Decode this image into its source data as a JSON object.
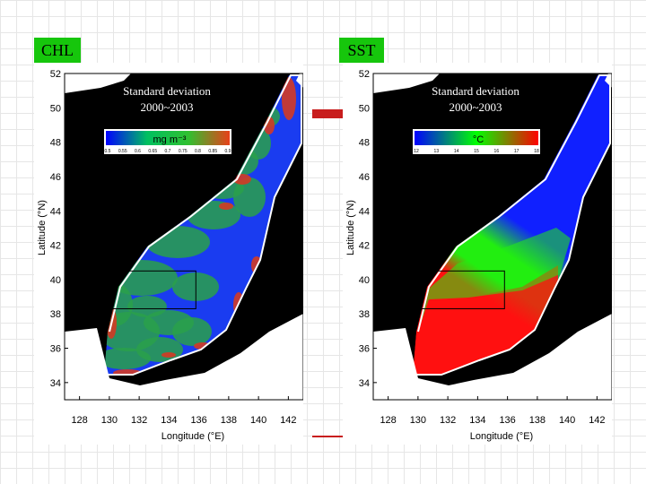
{
  "panels": [
    {
      "key": "chl",
      "tag": "CHL",
      "title_line1": "Standard deviation",
      "title_line2": "2000~2003",
      "colorbar_unit": "mg m⁻³",
      "colorbar_ticks": [
        "0.5",
        "0.55",
        "0.6",
        "0.65",
        "0.7",
        "0.75",
        "0.8",
        "0.85",
        "0.9"
      ],
      "colorbar_colors": [
        "#0000ff",
        "#00c060",
        "#30c030",
        "#e8401a"
      ],
      "sea_colors": [
        "#1a3cf0",
        "#2aa04a",
        "#d43a24"
      ],
      "land_color": "#000000"
    },
    {
      "key": "sst",
      "tag": "SST",
      "title_line1": "Standard deviation",
      "title_line2": "2000~2003",
      "colorbar_unit": "°C",
      "colorbar_ticks": [
        "12",
        "13",
        "14",
        "15",
        "16",
        "17",
        "18"
      ],
      "colorbar_colors": [
        "#0000ff",
        "#00ff00",
        "#ff0000"
      ],
      "sea_colors": [
        "#1020ff",
        "#22ee10",
        "#ff1010"
      ],
      "land_color": "#000000"
    }
  ],
  "axes": {
    "xlabel": "Longitude (°E)",
    "ylabel": "Latitude (°N)",
    "lon_ticks": [
      128,
      130,
      132,
      134,
      136,
      138,
      140,
      142
    ],
    "lat_ticks": [
      34,
      36,
      38,
      40,
      42,
      44,
      46,
      48,
      50,
      52
    ],
    "lon_range": [
      127,
      143
    ],
    "lat_range": [
      33,
      52
    ]
  },
  "box": {
    "lon": [
      130.2,
      135.8
    ],
    "lat": [
      38.3,
      40.5
    ]
  }
}
